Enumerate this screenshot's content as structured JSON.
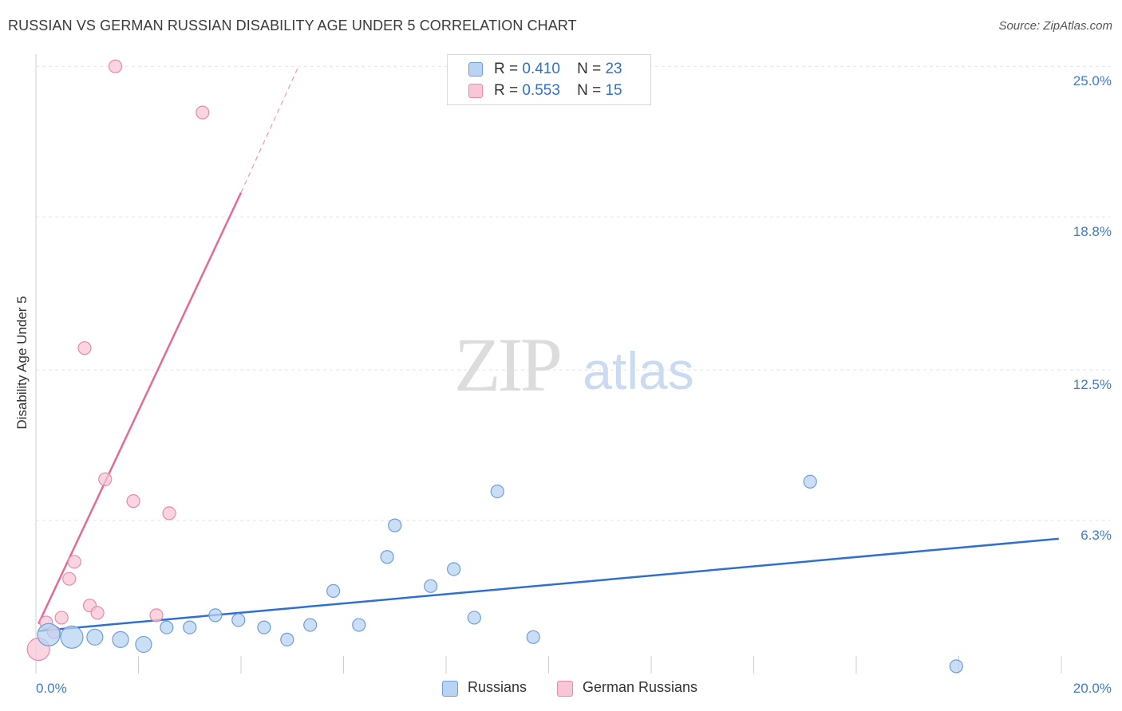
{
  "title": "RUSSIAN VS GERMAN RUSSIAN DISABILITY AGE UNDER 5 CORRELATION CHART",
  "source": "Source: ZipAtlas.com",
  "watermark": {
    "zip": "ZIP",
    "atlas": "atlas"
  },
  "legend": {
    "r_label": "R =",
    "n_label": "N =",
    "russians": {
      "r": "0.410",
      "n": "23"
    },
    "german_russians": {
      "r": "0.553",
      "n": "15"
    }
  },
  "colors": {
    "russians_fill": "#b8d3f3",
    "russians_stroke": "#6d9ed9",
    "russians_line": "#2f6fce",
    "german_fill": "#f8c6d5",
    "german_stroke": "#e88aa8",
    "german_line": "#e46a95",
    "axis_text": "#3e7bd0",
    "grid": "#e3e3e3"
  },
  "chart_data": {
    "type": "scatter",
    "title": "RUSSIAN VS GERMAN RUSSIAN DISABILITY AGE UNDER 5 CORRELATION CHART",
    "xlabel": "",
    "ylabel": "Disability Age Under 5",
    "xlim": [
      0,
      20
    ],
    "ylim": [
      0,
      25.5
    ],
    "x_tick_labels": [
      "0.0%",
      "20.0%"
    ],
    "y_ticks": [
      6.3,
      12.5,
      18.8,
      25.0
    ],
    "y_tick_labels": [
      "6.3%",
      "12.5%",
      "18.8%",
      "25.0%"
    ],
    "legend_position": "top-center",
    "series": [
      {
        "name": "Russians",
        "r": 0.41,
        "n": 23,
        "points": [
          {
            "x": 0.25,
            "y": 1.6,
            "size": "large"
          },
          {
            "x": 0.7,
            "y": 1.5,
            "size": "large"
          },
          {
            "x": 1.15,
            "y": 1.5,
            "size": "medium"
          },
          {
            "x": 1.65,
            "y": 1.4,
            "size": "medium"
          },
          {
            "x": 2.1,
            "y": 1.2,
            "size": "medium"
          },
          {
            "x": 2.55,
            "y": 1.9,
            "size": "small"
          },
          {
            "x": 3.0,
            "y": 1.9,
            "size": "small"
          },
          {
            "x": 3.5,
            "y": 2.4,
            "size": "small"
          },
          {
            "x": 3.95,
            "y": 2.2,
            "size": "small"
          },
          {
            "x": 4.45,
            "y": 1.9,
            "size": "small"
          },
          {
            "x": 4.9,
            "y": 1.4,
            "size": "small"
          },
          {
            "x": 5.35,
            "y": 2.0,
            "size": "small"
          },
          {
            "x": 5.8,
            "y": 3.4,
            "size": "small"
          },
          {
            "x": 6.3,
            "y": 2.0,
            "size": "small"
          },
          {
            "x": 6.85,
            "y": 4.8,
            "size": "small"
          },
          {
            "x": 7.0,
            "y": 6.1,
            "size": "small"
          },
          {
            "x": 7.7,
            "y": 3.6,
            "size": "small"
          },
          {
            "x": 8.15,
            "y": 4.3,
            "size": "small"
          },
          {
            "x": 8.55,
            "y": 2.3,
            "size": "small"
          },
          {
            "x": 9.0,
            "y": 7.5,
            "size": "small"
          },
          {
            "x": 9.7,
            "y": 1.5,
            "size": "small"
          },
          {
            "x": 15.1,
            "y": 7.9,
            "size": "small"
          },
          {
            "x": 17.95,
            "y": 0.3,
            "size": "small"
          }
        ],
        "trend": {
          "x0": 0.05,
          "y0": 1.75,
          "x1": 19.95,
          "y1": 5.55
        }
      },
      {
        "name": "German Russians",
        "r": 0.553,
        "n": 15,
        "points": [
          {
            "x": 0.05,
            "y": 1.0,
            "size": "large"
          },
          {
            "x": 0.2,
            "y": 2.1,
            "size": "small"
          },
          {
            "x": 0.35,
            "y": 1.7,
            "size": "small"
          },
          {
            "x": 0.5,
            "y": 2.3,
            "size": "small"
          },
          {
            "x": 0.65,
            "y": 3.9,
            "size": "small"
          },
          {
            "x": 0.75,
            "y": 4.6,
            "size": "small"
          },
          {
            "x": 0.95,
            "y": 13.4,
            "size": "small"
          },
          {
            "x": 1.05,
            "y": 2.8,
            "size": "small"
          },
          {
            "x": 1.2,
            "y": 2.5,
            "size": "small"
          },
          {
            "x": 1.35,
            "y": 8.0,
            "size": "small"
          },
          {
            "x": 1.55,
            "y": 25.0,
            "size": "small"
          },
          {
            "x": 1.9,
            "y": 7.1,
            "size": "small"
          },
          {
            "x": 2.35,
            "y": 2.4,
            "size": "small"
          },
          {
            "x": 2.6,
            "y": 6.6,
            "size": "small"
          },
          {
            "x": 3.25,
            "y": 23.1,
            "size": "small"
          }
        ],
        "trend": {
          "x0": 0.05,
          "y0": 2.05,
          "x1": 4.0,
          "y1": 19.8,
          "dash_x1": 5.1,
          "dash_y1": 24.9
        }
      }
    ]
  }
}
